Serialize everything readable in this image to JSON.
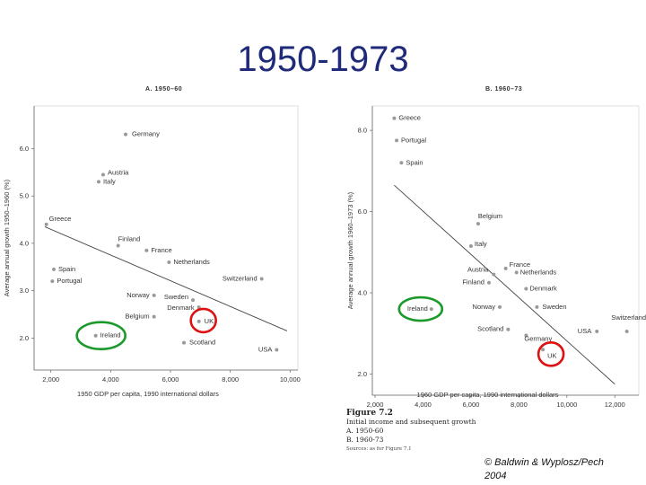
{
  "slide": {
    "title": "1950-1973",
    "credit_line1": "© Baldwin & Wyplosz/Pech",
    "credit_line2": "2004"
  },
  "caption": {
    "figure": "Figure 7.2",
    "line1": "Initial income and subsequent growth",
    "line2": "A. 1950-60",
    "line3": "B. 1960-73",
    "source": "Sources: as for Figure 7.1"
  },
  "colors": {
    "points": "#9a9a9a",
    "highlight_green": "#1a9a2a",
    "highlight_red": "#dd1111",
    "title": "#1f2a7a"
  },
  "chart_data": [
    {
      "type": "scatter",
      "title": "A. 1950–60",
      "xlabel": "1950 GDP per capita, 1990 international dollars",
      "ylabel": "Average annual growth 1950–1960 (%)",
      "xlim": [
        1500,
        10200
      ],
      "ylim": [
        1.4,
        6.9
      ],
      "xticks": [
        {
          "v": 2000,
          "t": "2,000"
        },
        {
          "v": 4000,
          "t": "4,000"
        },
        {
          "v": 6000,
          "t": "6,000"
        },
        {
          "v": 8000,
          "t": "8,000"
        },
        {
          "v": 10000,
          "t": "10,000"
        }
      ],
      "yticks": [
        {
          "v": 2,
          "t": "2.0"
        },
        {
          "v": 3,
          "t": "3.0"
        },
        {
          "v": 4,
          "t": "4.0"
        },
        {
          "v": 5,
          "t": "5.0"
        },
        {
          "v": 6,
          "t": "6.0"
        }
      ],
      "trend": [
        [
          1800,
          4.35
        ],
        [
          9900,
          2.15
        ]
      ],
      "points": [
        {
          "name": "Germany",
          "x": 4500,
          "y": 6.3
        },
        {
          "name": "Austria",
          "x": 3750,
          "y": 5.45
        },
        {
          "name": "Italy",
          "x": 3600,
          "y": 5.3
        },
        {
          "name": "Greece",
          "x": 1850,
          "y": 4.4
        },
        {
          "name": "Finland",
          "x": 4250,
          "y": 3.95
        },
        {
          "name": "France",
          "x": 5200,
          "y": 3.85
        },
        {
          "name": "Netherlands",
          "x": 5950,
          "y": 3.6
        },
        {
          "name": "Spain",
          "x": 2100,
          "y": 3.45
        },
        {
          "name": "Portugal",
          "x": 2050,
          "y": 3.2
        },
        {
          "name": "Switzerland",
          "x": 9050,
          "y": 3.25
        },
        {
          "name": "Norway",
          "x": 5450,
          "y": 2.9
        },
        {
          "name": "Sweden",
          "x": 6750,
          "y": 2.8
        },
        {
          "name": "Denmark",
          "x": 6950,
          "y": 2.65
        },
        {
          "name": "Belgium",
          "x": 5450,
          "y": 2.45
        },
        {
          "name": "UK",
          "x": 6950,
          "y": 2.35
        },
        {
          "name": "Ireland",
          "x": 3500,
          "y": 2.05
        },
        {
          "name": "Scotland",
          "x": 6450,
          "y": 1.9
        },
        {
          "name": "USA",
          "x": 9550,
          "y": 1.75
        }
      ]
    },
    {
      "type": "scatter",
      "title": "B. 1960–73",
      "xlabel": "1960 GDP per capita, 1990 international dollars",
      "ylabel": "Average annual growth 1960–1973 (%)",
      "xlim": [
        2000,
        13000
      ],
      "ylim": [
        1.7,
        8.6
      ],
      "xticks": [
        {
          "v": 2000,
          "t": "2,000"
        },
        {
          "v": 4000,
          "t": "4,000"
        },
        {
          "v": 6000,
          "t": "6,000"
        },
        {
          "v": 8000,
          "t": "8,000"
        },
        {
          "v": 10000,
          "t": "10,000"
        },
        {
          "v": 12000,
          "t": "12,000"
        }
      ],
      "yticks": [
        {
          "v": 2,
          "t": "2.0"
        },
        {
          "v": 4,
          "t": "4.0"
        },
        {
          "v": 6,
          "t": "6.0"
        },
        {
          "v": 8,
          "t": "8.0"
        }
      ],
      "trend": [
        [
          2800,
          6.65
        ],
        [
          12000,
          1.75
        ]
      ],
      "points": [
        {
          "name": "Greece",
          "x": 2800,
          "y": 8.3
        },
        {
          "name": "Portugal",
          "x": 2900,
          "y": 7.75
        },
        {
          "name": "Spain",
          "x": 3100,
          "y": 7.2
        },
        {
          "name": "Belgium",
          "x": 6300,
          "y": 5.7
        },
        {
          "name": "Italy",
          "x": 6000,
          "y": 5.15
        },
        {
          "name": "France",
          "x": 7450,
          "y": 4.6
        },
        {
          "name": "Netherlands",
          "x": 7900,
          "y": 4.5
        },
        {
          "name": "Austria",
          "x": 6950,
          "y": 4.45
        },
        {
          "name": "Finland",
          "x": 6750,
          "y": 4.25
        },
        {
          "name": "Denmark",
          "x": 8300,
          "y": 4.1
        },
        {
          "name": "Switzerland",
          "x": 12500,
          "y": 3.05
        },
        {
          "name": "Ireland",
          "x": 4350,
          "y": 3.6
        },
        {
          "name": "Norway",
          "x": 7200,
          "y": 3.65
        },
        {
          "name": "Sweden",
          "x": 8750,
          "y": 3.65
        },
        {
          "name": "Scotland",
          "x": 7550,
          "y": 3.1
        },
        {
          "name": "Germany",
          "x": 8300,
          "y": 2.95
        },
        {
          "name": "USA",
          "x": 11250,
          "y": 3.05
        },
        {
          "name": "UK",
          "x": 9000,
          "y": 2.6
        }
      ]
    }
  ]
}
